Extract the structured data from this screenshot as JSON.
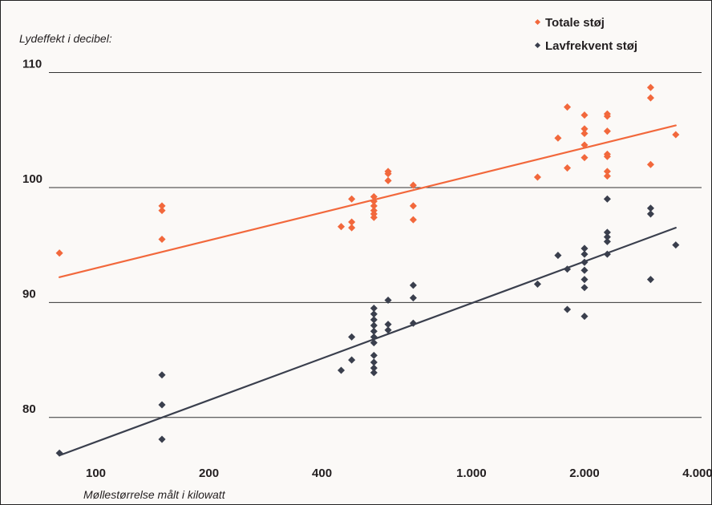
{
  "chart_data": {
    "type": "scatter",
    "ylabel": "Lydeffekt i decibel:",
    "xlabel": "Møllestørrelse målt i kilowatt",
    "x_scale": "log",
    "xlim": [
      75,
      4100
    ],
    "ylim": [
      76.5,
      111.5
    ],
    "y_ticks": [
      80,
      90,
      100,
      110
    ],
    "y_tick_labels": [
      "80",
      "90",
      "100",
      "110"
    ],
    "x_ticks": [
      100,
      200,
      400,
      1000,
      2000,
      4000
    ],
    "x_tick_labels": [
      "100",
      "200",
      "400",
      "1.000",
      "2.000",
      "4.000"
    ],
    "grid": "horizontal",
    "legend_position": "top-right",
    "colors": {
      "total": "#f2683c",
      "low": "#3a3f4d",
      "grid": "#333333",
      "text": "#231f20"
    },
    "series": [
      {
        "name": "Totale støj",
        "color": "#f2683c",
        "points": [
          [
            80,
            94.3
          ],
          [
            150,
            98.4
          ],
          [
            150,
            98
          ],
          [
            150,
            95.5
          ],
          [
            450,
            96.6
          ],
          [
            480,
            97
          ],
          [
            480,
            96.5
          ],
          [
            480,
            99
          ],
          [
            550,
            99.2
          ],
          [
            550,
            98.8
          ],
          [
            550,
            98.4
          ],
          [
            550,
            98
          ],
          [
            550,
            97.7
          ],
          [
            550,
            97.4
          ],
          [
            600,
            101.4
          ],
          [
            600,
            101.2
          ],
          [
            600,
            100.6
          ],
          [
            700,
            100.2
          ],
          [
            700,
            98.4
          ],
          [
            700,
            97.2
          ],
          [
            1500,
            100.9
          ],
          [
            1700,
            104.3
          ],
          [
            1800,
            101.7
          ],
          [
            1800,
            107
          ],
          [
            2000,
            102.6
          ],
          [
            2000,
            103.7
          ],
          [
            2000,
            104.7
          ],
          [
            2000,
            105.1
          ],
          [
            2000,
            106.3
          ],
          [
            2300,
            102.7
          ],
          [
            2300,
            102.9
          ],
          [
            2300,
            101.4
          ],
          [
            2300,
            101
          ],
          [
            2300,
            104.9
          ],
          [
            2300,
            106.2
          ],
          [
            2300,
            106.4
          ],
          [
            3000,
            108.7
          ],
          [
            3000,
            107.8
          ],
          [
            3000,
            102
          ],
          [
            3500,
            104.6
          ]
        ],
        "trend": [
          [
            80,
            92.2
          ],
          [
            3500,
            105.4
          ]
        ]
      },
      {
        "name": "Lavfrekvent støj",
        "color": "#3a3f4d",
        "points": [
          [
            80,
            76.9
          ],
          [
            150,
            83.7
          ],
          [
            150,
            81.1
          ],
          [
            150,
            78.1
          ],
          [
            450,
            84.1
          ],
          [
            480,
            85
          ],
          [
            480,
            87
          ],
          [
            550,
            89.5
          ],
          [
            550,
            89
          ],
          [
            550,
            88.5
          ],
          [
            550,
            88
          ],
          [
            550,
            87.5
          ],
          [
            550,
            87
          ],
          [
            550,
            86.5
          ],
          [
            550,
            85.4
          ],
          [
            550,
            84.8
          ],
          [
            550,
            84.3
          ],
          [
            550,
            83.9
          ],
          [
            600,
            87.6
          ],
          [
            600,
            88.1
          ],
          [
            600,
            90.2
          ],
          [
            700,
            88.2
          ],
          [
            700,
            90.4
          ],
          [
            700,
            91.5
          ],
          [
            1500,
            91.6
          ],
          [
            1700,
            94.1
          ],
          [
            1800,
            89.4
          ],
          [
            1800,
            92.9
          ],
          [
            2000,
            88.8
          ],
          [
            2000,
            91.3
          ],
          [
            2000,
            92
          ],
          [
            2000,
            92.8
          ],
          [
            2000,
            93.5
          ],
          [
            2000,
            94.2
          ],
          [
            2000,
            94.7
          ],
          [
            2300,
            94.2
          ],
          [
            2300,
            95.3
          ],
          [
            2300,
            95.7
          ],
          [
            2300,
            96.1
          ],
          [
            2300,
            99
          ],
          [
            3000,
            98.2
          ],
          [
            3000,
            97.7
          ],
          [
            3000,
            92
          ],
          [
            3500,
            95
          ]
        ],
        "trend": [
          [
            80,
            76.7
          ],
          [
            3500,
            96.5
          ]
        ]
      }
    ]
  }
}
